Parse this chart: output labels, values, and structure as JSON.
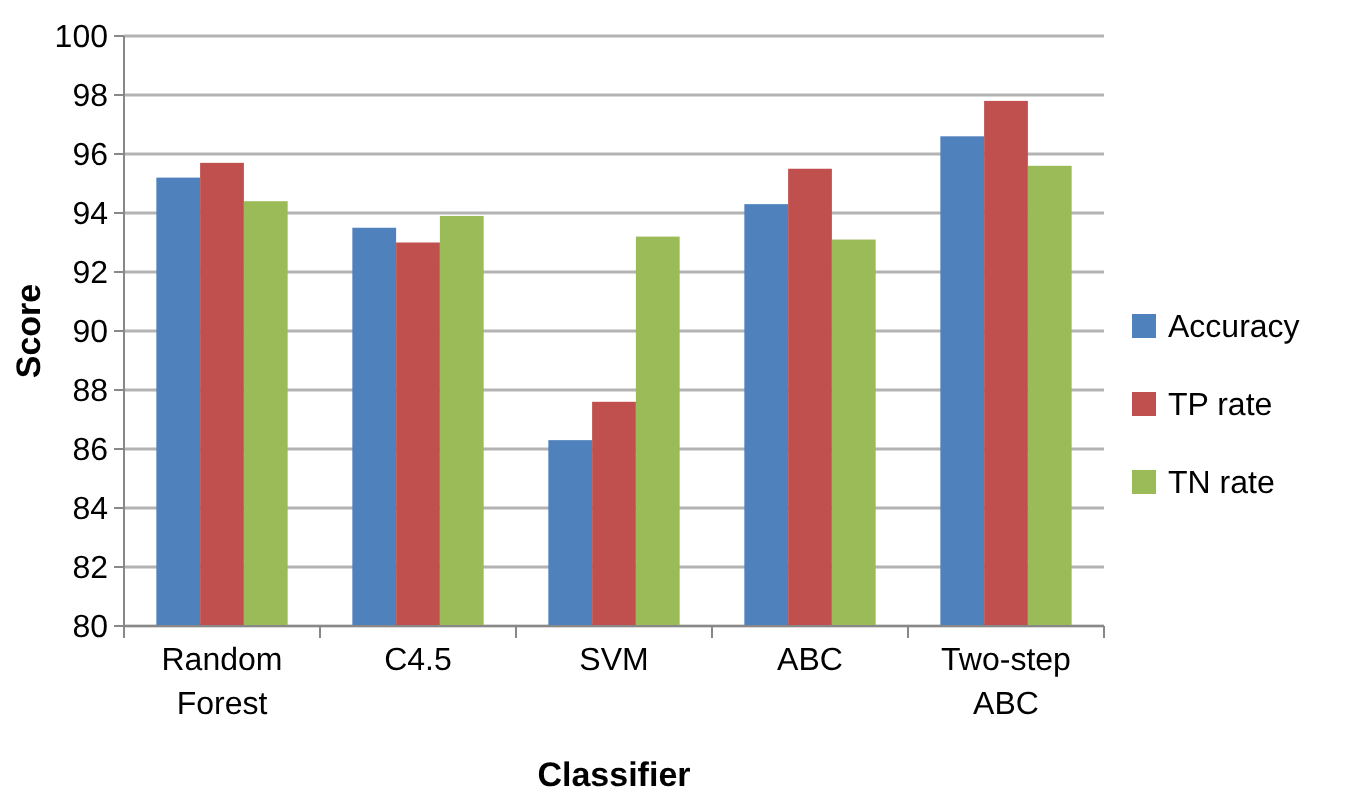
{
  "chart_data": {
    "type": "bar",
    "xlabel": "Classifier",
    "ylabel": "Score",
    "categories": [
      "Random Forest",
      "C4.5",
      "SVM",
      "ABC",
      "Two-step ABC"
    ],
    "series": [
      {
        "name": "Accuracy",
        "color": "#4f81bd",
        "values": [
          95.2,
          93.5,
          86.3,
          94.3,
          96.6
        ]
      },
      {
        "name": "TP rate",
        "color": "#c0504d",
        "values": [
          95.7,
          93.0,
          87.6,
          95.5,
          97.8
        ]
      },
      {
        "name": "TN rate",
        "color": "#9bbb59",
        "values": [
          94.4,
          93.9,
          93.2,
          93.1,
          95.6
        ]
      }
    ],
    "ylim": [
      80,
      100
    ],
    "yticks": [
      80,
      82,
      84,
      86,
      88,
      90,
      92,
      94,
      96,
      98,
      100
    ],
    "grid": "y",
    "legend": "right"
  }
}
